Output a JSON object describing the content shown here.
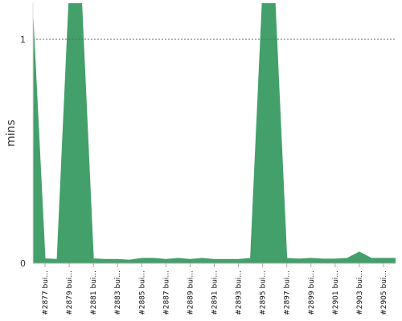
{
  "chart_data": {
    "type": "area",
    "ylabel": "mins",
    "xlabel": "",
    "title": "",
    "ylim": [
      0,
      1.15
    ],
    "yticks": [
      0,
      1
    ],
    "reference_line": 1,
    "grid": false,
    "color": "#43a06a",
    "x_labels": [
      "#2877 bui...",
      "#2879 bui...",
      "#2881 bui...",
      "#2883 bui...",
      "#2885 bui...",
      "#2887 bui...",
      "#2889 bui...",
      "#2891 bui...",
      "#2893 bui...",
      "#2895 bui...",
      "#2897 bui...",
      "#2899 bui...",
      "#2901 bui...",
      "#2903 bui...",
      "#2905 bui..."
    ],
    "x": [
      2876,
      2877,
      2878,
      2879,
      2880,
      2881,
      2882,
      2883,
      2884,
      2885,
      2886,
      2887,
      2888,
      2889,
      2890,
      2891,
      2892,
      2893,
      2894,
      2895,
      2896,
      2897,
      2898,
      2899,
      2900,
      2901,
      2902,
      2903,
      2904,
      2905,
      2906
    ],
    "values": [
      1.1,
      0.02,
      0.017,
      1.2,
      1.2,
      0.02,
      0.017,
      0.017,
      0.014,
      0.022,
      0.022,
      0.017,
      0.022,
      0.017,
      0.022,
      0.017,
      0.017,
      0.017,
      0.022,
      1.2,
      1.2,
      0.022,
      0.019,
      0.022,
      0.019,
      0.019,
      0.022,
      0.05,
      0.022,
      0.022,
      0.022
    ]
  }
}
